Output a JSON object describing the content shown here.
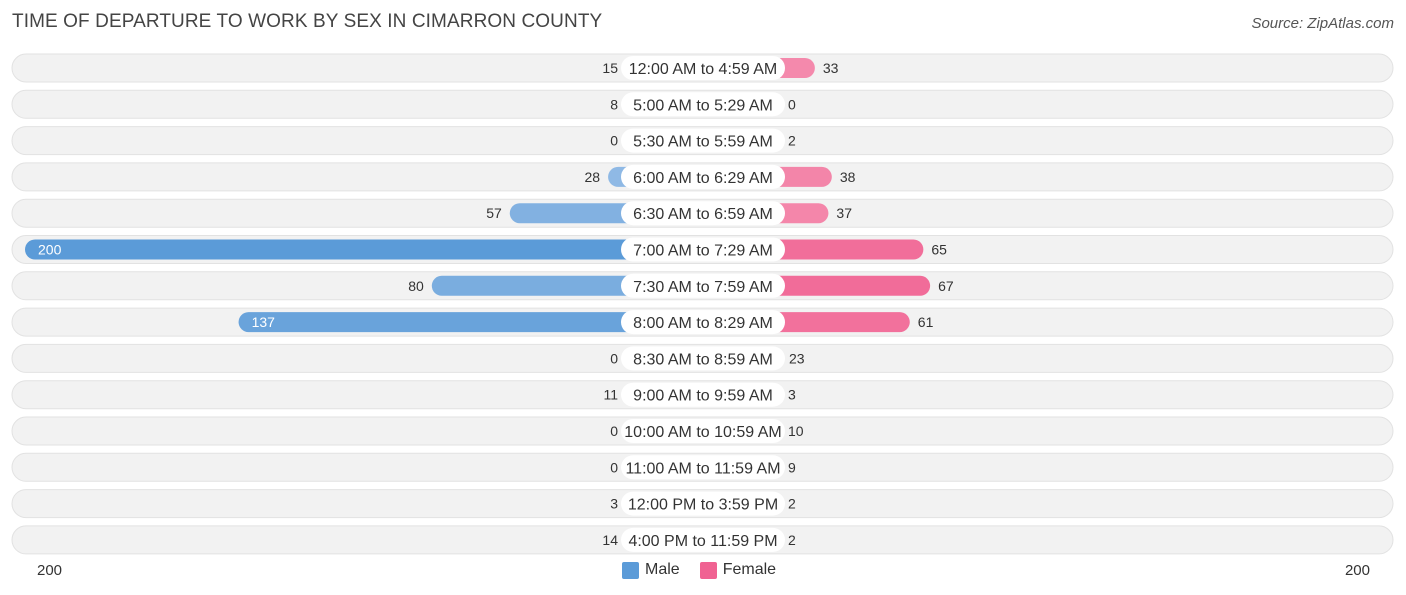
{
  "title": "TIME OF DEPARTURE TO WORK BY SEX IN CIMARRON COUNTY",
  "source": "Source: ZipAtlas.com",
  "colors": {
    "male": "#7aa7dc",
    "male_strong": "#5b9bd8",
    "female": "#f580a3",
    "female_strong": "#f06292",
    "row_bg": "#efefef"
  },
  "legend": {
    "male": "Male",
    "female": "Female"
  },
  "axis": {
    "left": "200",
    "right": "200"
  },
  "chart_data": {
    "type": "bar",
    "orientation": "horizontal-diverging",
    "title": "TIME OF DEPARTURE TO WORK BY SEX IN CIMARRON COUNTY",
    "xlim": [
      -200,
      200
    ],
    "categories": [
      "12:00 AM to 4:59 AM",
      "5:00 AM to 5:29 AM",
      "5:30 AM to 5:59 AM",
      "6:00 AM to 6:29 AM",
      "6:30 AM to 6:59 AM",
      "7:00 AM to 7:29 AM",
      "7:30 AM to 7:59 AM",
      "8:00 AM to 8:29 AM",
      "8:30 AM to 8:59 AM",
      "9:00 AM to 9:59 AM",
      "10:00 AM to 10:59 AM",
      "11:00 AM to 11:59 AM",
      "12:00 PM to 3:59 PM",
      "4:00 PM to 11:59 PM"
    ],
    "series": [
      {
        "name": "Male",
        "values": [
          15,
          8,
          0,
          28,
          57,
          200,
          80,
          137,
          0,
          11,
          0,
          0,
          3,
          14
        ]
      },
      {
        "name": "Female",
        "values": [
          33,
          0,
          2,
          38,
          37,
          65,
          67,
          61,
          23,
          3,
          10,
          9,
          2,
          2
        ]
      }
    ]
  }
}
